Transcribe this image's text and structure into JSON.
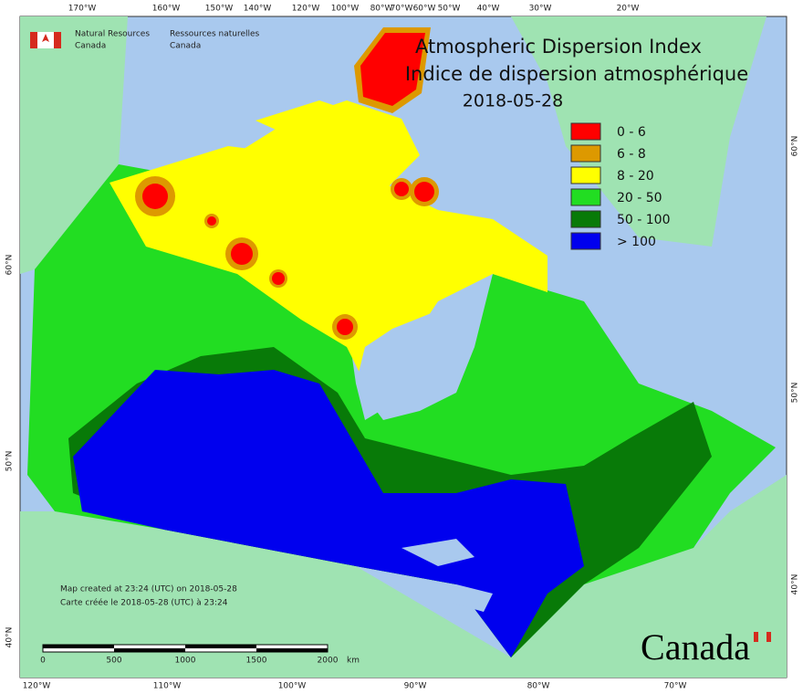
{
  "agency": {
    "en_line1": "Natural Resources",
    "en_line2": "Canada",
    "fr_line1": "Ressources naturelles",
    "fr_line2": "Canada"
  },
  "title": {
    "en": "Atmospheric Dispersion Index",
    "fr": "Indice de dispersion atmosphérique",
    "date": "2018-05-28"
  },
  "legend": [
    {
      "label": "0 - 6",
      "color": "#ff0000"
    },
    {
      "label": "6 - 8",
      "color": "#dd9900"
    },
    {
      "label": "8 - 20",
      "color": "#ffff00"
    },
    {
      "label": "20 - 50",
      "color": "#22dd22"
    },
    {
      "label": "50 - 100",
      "color": "#087a08"
    },
    {
      "label": "> 100",
      "color": "#0000ee"
    }
  ],
  "graticule": {
    "top": [
      "170°W",
      "160°W",
      "150°W",
      "140°W",
      "120°W",
      "100°W",
      "80°W",
      "70°W",
      "60°W",
      "50°W",
      "40°W",
      "30°W",
      "20°W"
    ],
    "bottom": [
      "120°W",
      "110°W",
      "100°W",
      "90°W",
      "80°W",
      "70°W"
    ],
    "left": [
      "60°N",
      "50°N",
      "40°N"
    ],
    "right": [
      "60°N",
      "50°N",
      "40°N"
    ]
  },
  "credits": [
    "Map created at 23:24 (UTC) on 2018-05-28",
    "Carte créée le 2018-05-28 (UTC) à 23:24"
  ],
  "scale_bar": {
    "labels": [
      "0",
      "500",
      "1000",
      "1500",
      "2000"
    ],
    "unit": "km"
  },
  "wordmark": "Canada"
}
